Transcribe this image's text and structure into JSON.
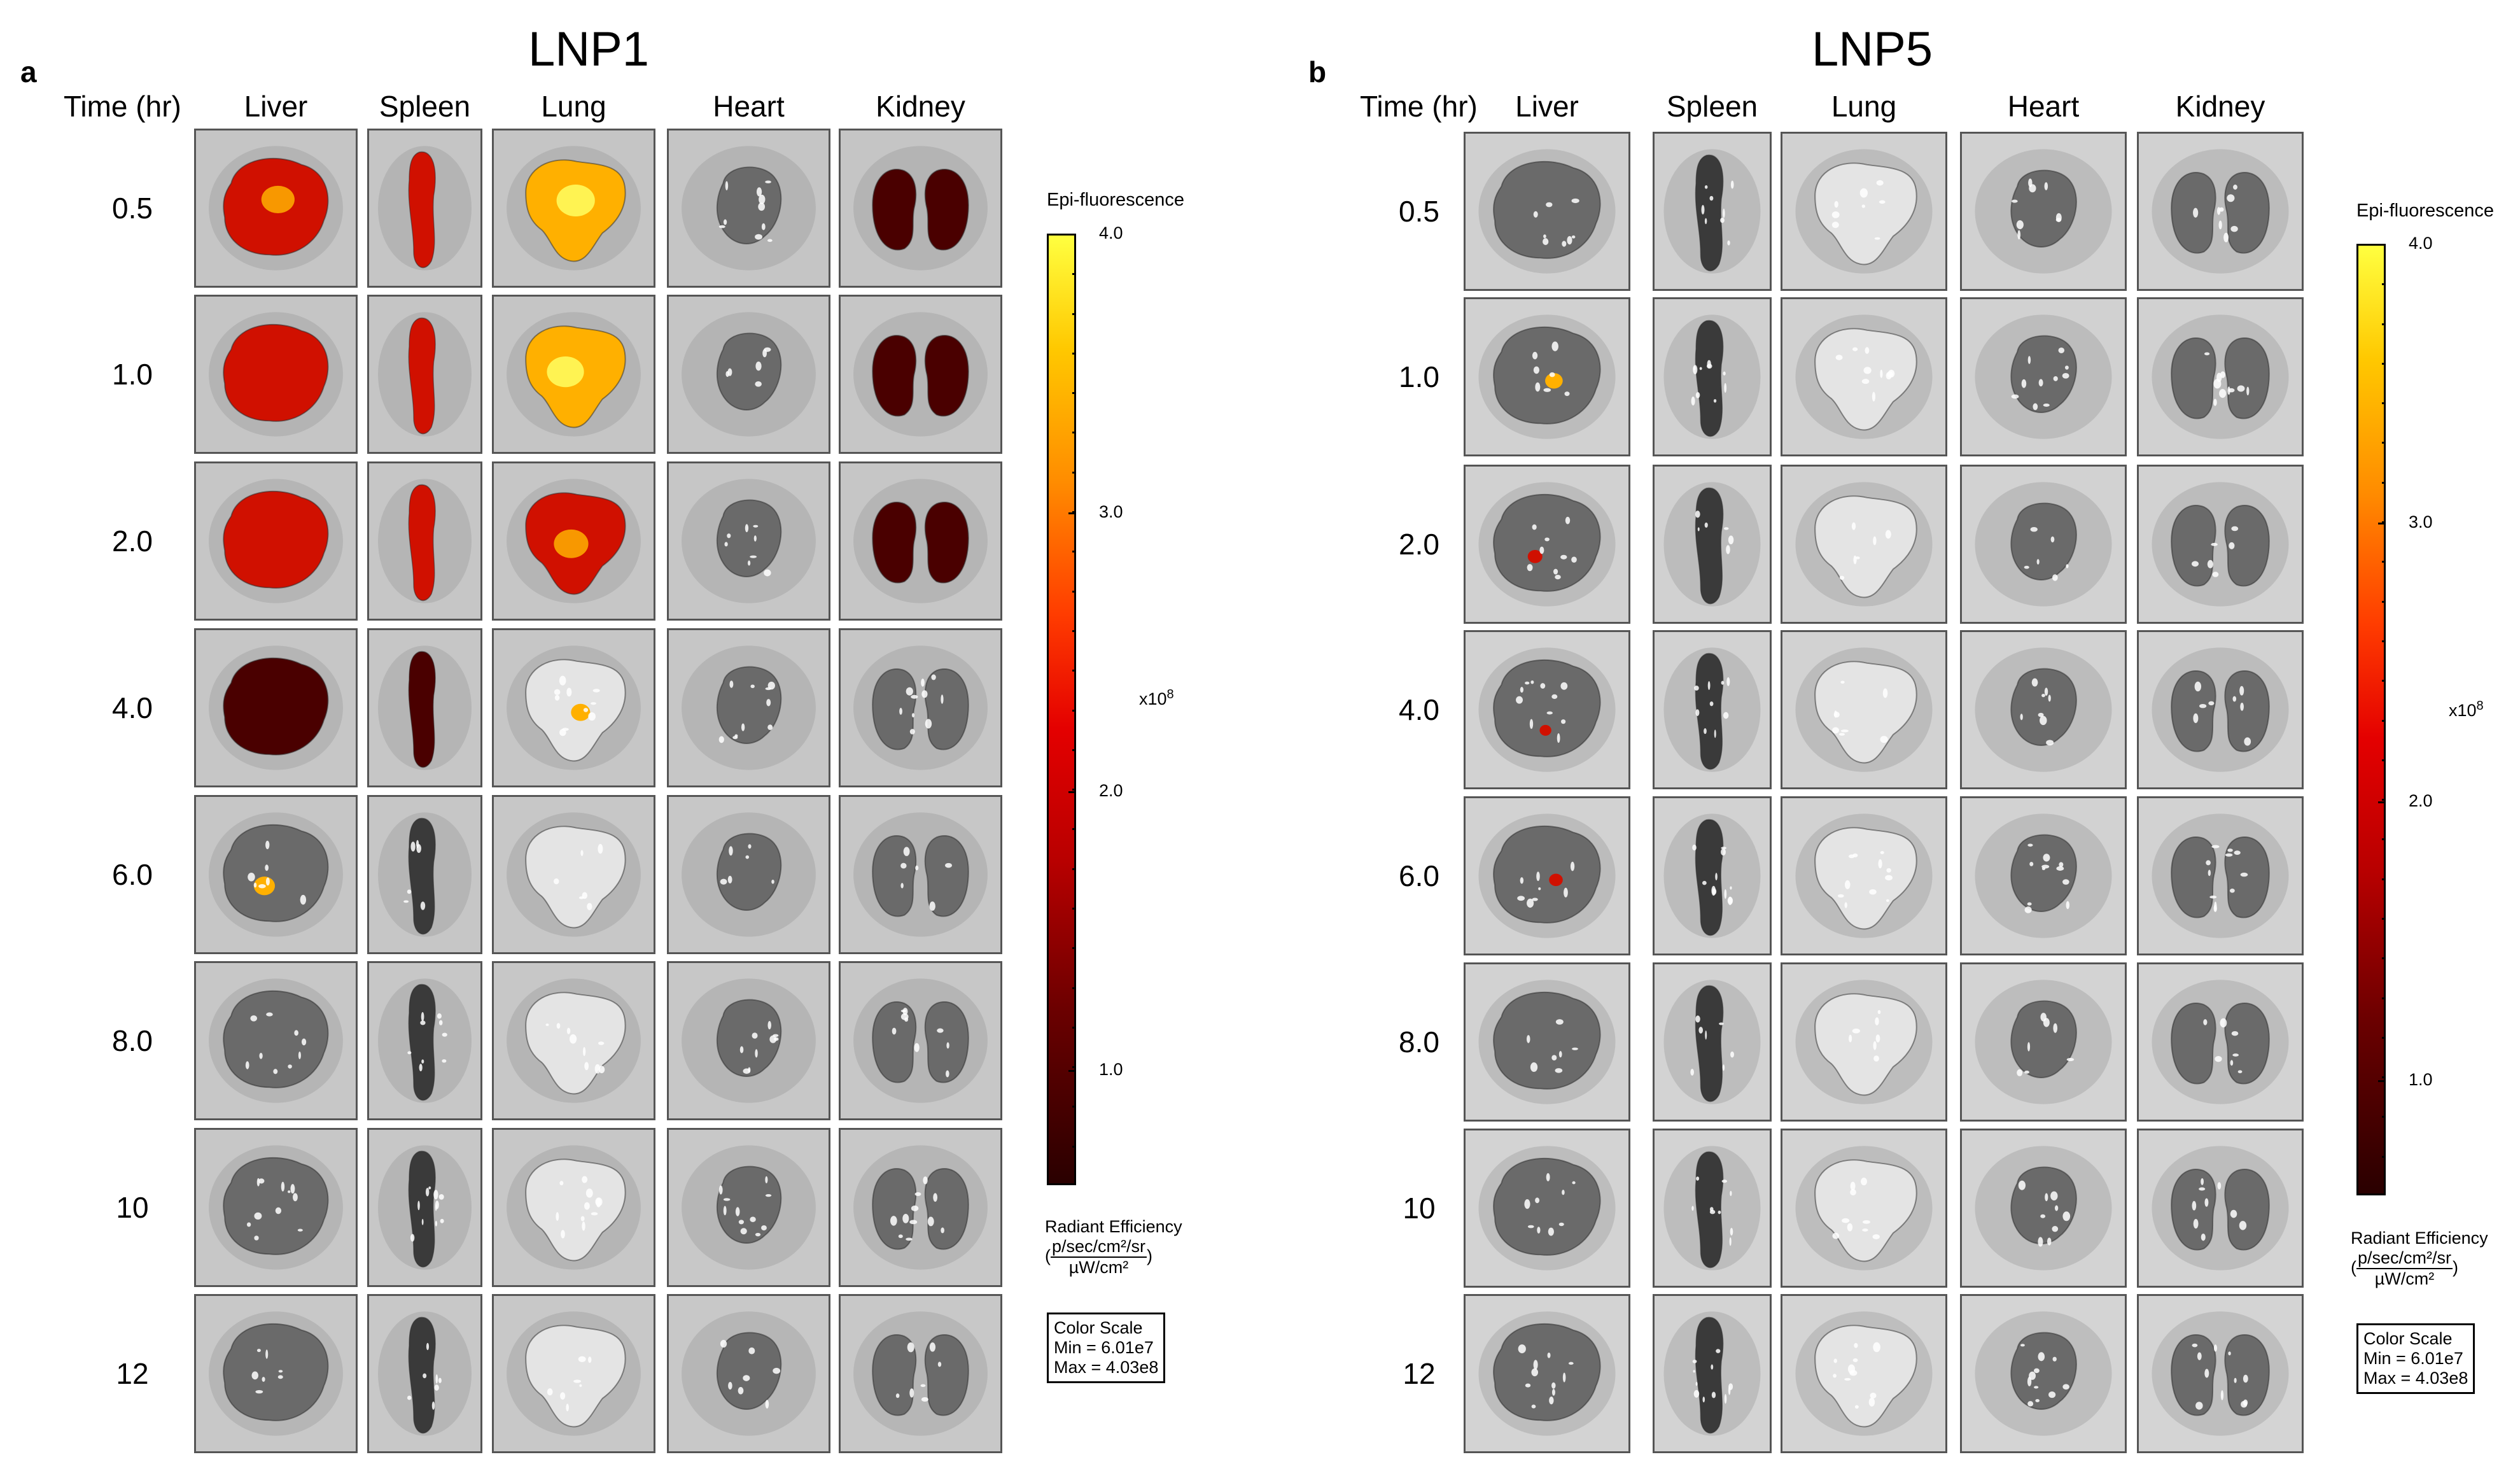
{
  "panels": [
    {
      "letter": "a",
      "title": "LNP1",
      "time_header": "Time (hr)",
      "organs": [
        "Liver",
        "Spleen",
        "Lung",
        "Heart",
        "Kidney"
      ],
      "times": [
        "0.5",
        "1.0",
        "2.0",
        "4.0",
        "6.0",
        "8.0",
        "10",
        "12"
      ],
      "intensity": [
        [
          0.55,
          0.4,
          0.75,
          0.0,
          0.2
        ],
        [
          0.5,
          0.4,
          0.7,
          0.0,
          0.2
        ],
        [
          0.45,
          0.38,
          0.6,
          0.0,
          0.18
        ],
        [
          0.25,
          0.25,
          0.1,
          0.0,
          0.0
        ],
        [
          0.12,
          0.0,
          0.0,
          0.0,
          0.0
        ],
        [
          0.0,
          0.0,
          0.0,
          0.0,
          0.0
        ],
        [
          0.0,
          0.0,
          0.0,
          0.0,
          0.0
        ],
        [
          0.0,
          0.0,
          0.0,
          0.0,
          0.0
        ]
      ],
      "colorbar": {
        "caption": "Epi-fluorescence",
        "ticks": [
          "4.0",
          "3.0",
          "2.0",
          "1.0"
        ],
        "multiplier": "x10",
        "multiplier_exp": "8",
        "units_title": "Radiant Efficiency",
        "units_num": "p/sec/cm²/sr",
        "units_den": "µW/cm²",
        "scale_title": "Color Scale",
        "scale_min": "Min = 6.01e7",
        "scale_max": "Max = 4.03e8"
      }
    },
    {
      "letter": "b",
      "title": "LNP5",
      "time_header": "Time (hr)",
      "organs": [
        "Liver",
        "Spleen",
        "Lung",
        "Heart",
        "Kidney"
      ],
      "times": [
        "0.5",
        "1.0",
        "2.0",
        "4.0",
        "6.0",
        "8.0",
        "10",
        "12"
      ],
      "intensity": [
        [
          0.0,
          0.0,
          0.0,
          0.0,
          0.0
        ],
        [
          0.08,
          0.0,
          0.0,
          0.0,
          0.0
        ],
        [
          0.05,
          0.0,
          0.0,
          0.0,
          0.0
        ],
        [
          0.02,
          0.0,
          0.0,
          0.0,
          0.0
        ],
        [
          0.04,
          0.0,
          0.0,
          0.0,
          0.0
        ],
        [
          0.0,
          0.0,
          0.0,
          0.0,
          0.0
        ],
        [
          0.0,
          0.0,
          0.0,
          0.0,
          0.0
        ],
        [
          0.0,
          0.0,
          0.0,
          0.0,
          0.0
        ]
      ],
      "colorbar": {
        "caption": "Epi-fluorescence",
        "ticks": [
          "4.0",
          "3.0",
          "2.0",
          "1.0"
        ],
        "multiplier": "x10",
        "multiplier_exp": "8",
        "units_title": "Radiant Efficiency",
        "units_num": "p/sec/cm²/sr",
        "units_den": "µW/cm²",
        "scale_title": "Color Scale",
        "scale_min": "Min = 6.01e7",
        "scale_max": "Max = 4.03e8"
      }
    }
  ],
  "colors": {
    "fluor_low": "#4a0000",
    "fluor_mid": "#d01000",
    "fluor_high": "#ffb000",
    "fluor_peak": "#ffff60",
    "tile_bg": "#cfcfcf"
  }
}
